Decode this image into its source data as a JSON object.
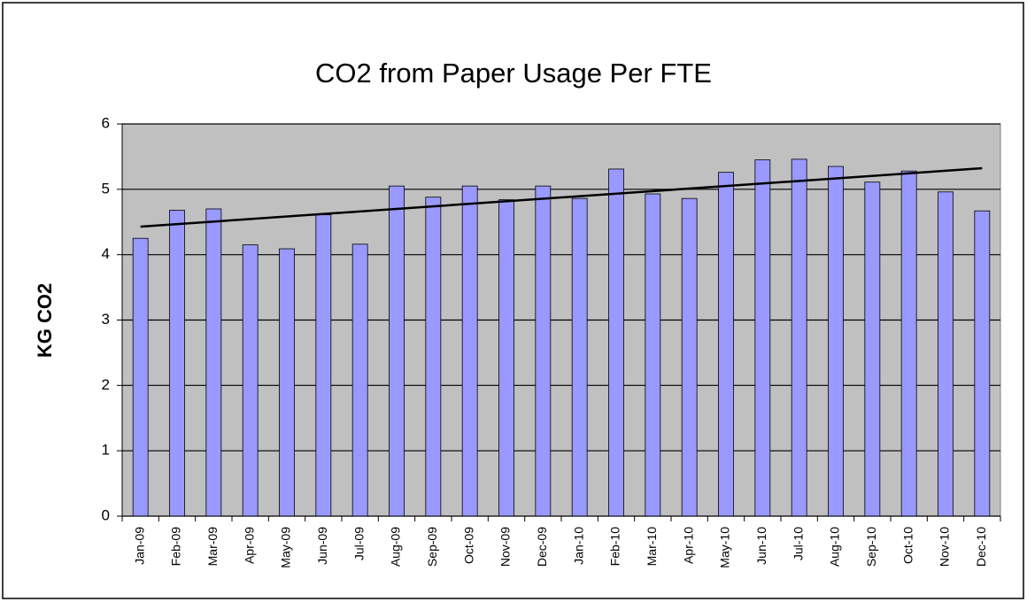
{
  "chart_data": {
    "type": "bar",
    "title": "CO2 from Paper Usage Per FTE",
    "y_label": "KG CO2",
    "categories": [
      "Jan-09",
      "Feb-09",
      "Mar-09",
      "Apr-09",
      "May-09",
      "Jun-09",
      "Jul-09",
      "Aug-09",
      "Sep-09",
      "Oct-09",
      "Nov-09",
      "Dec-09",
      "Jan-10",
      "Feb-10",
      "Mar-10",
      "Apr-10",
      "May-10",
      "Jun-10",
      "Jul-10",
      "Aug-10",
      "Sep-10",
      "Oct-10",
      "Nov-10",
      "Dec-10"
    ],
    "values": [
      4.25,
      4.68,
      4.7,
      4.15,
      4.09,
      4.61,
      4.16,
      5.05,
      4.88,
      5.05,
      4.84,
      5.05,
      4.86,
      5.31,
      4.93,
      4.86,
      5.26,
      5.45,
      5.46,
      5.35,
      5.11,
      5.28,
      4.96,
      4.67
    ],
    "color": "#9999ff",
    "ylim": [
      0,
      6
    ],
    "yticks": [
      0,
      1,
      2,
      3,
      4,
      5,
      6
    ],
    "grid": true,
    "trendline": "linear",
    "trendline_color": "#000000",
    "plot_background": "#c0c0c0"
  }
}
